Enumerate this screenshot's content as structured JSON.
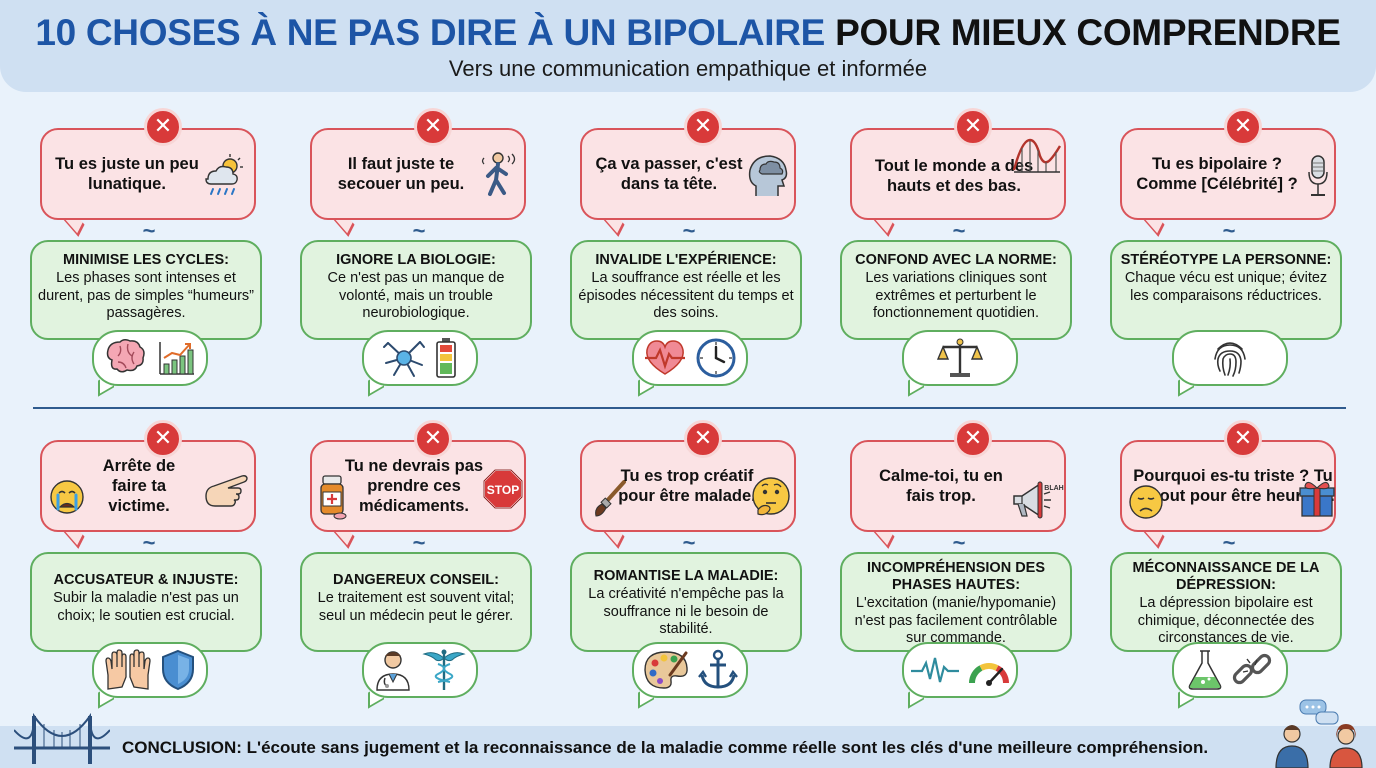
{
  "header": {
    "title_blue": "10 CHOSES À NE PAS DIRE À UN BIPOLAIRE",
    "title_black": "POUR MIEUX COMPRENDRE",
    "subtitle": "Vers une communication empathique et informée"
  },
  "cards": [
    {
      "myth": "Tu es juste un peu lunatique.",
      "head": "MINIMISE LES CYCLES:",
      "body": "Les phases sont intenses et durent, pas de simples “humeurs” passagères.",
      "icons": [
        "weather-icon",
        "brain-icon",
        "chart-up-icon"
      ]
    },
    {
      "myth": "Il faut juste te secouer un peu.",
      "head": "IGNORE LA BIOLOGIE:",
      "body": "Ce n'est pas un manque de volonté, mais un trouble neurobiologique.",
      "icons": [
        "shaking-person-icon",
        "neuron-icon",
        "battery-icon"
      ]
    },
    {
      "myth": "Ça va passer, c'est dans ta tête.",
      "head": "INVALIDE L'EXPÉRIENCE:",
      "body": "La souffrance est réelle et les épisodes nécessitent du temps et des soins.",
      "icons": [
        "head-cloud-icon",
        "heartbeat-icon",
        "clock-icon"
      ]
    },
    {
      "myth": "Tout le monde a des hauts et des bas.",
      "head": "CONFOND AVEC LA NORME:",
      "body": "Les variations cliniques sont extrêmes et perturbent le fonctionnement quotidien.",
      "icons": [
        "rollercoaster-icon",
        "scale-icon"
      ]
    },
    {
      "myth": "Tu es bipolaire ? Comme [Célébrité] ?",
      "head": "STÉRÉOTYPE LA PERSONNE:",
      "body": "Chaque vécu est unique; évitez les comparaisons réductrices.",
      "icons": [
        "microphone-icon",
        "fingerprint-icon"
      ]
    },
    {
      "myth": "Arrête de faire ta victime.",
      "head": "ACCUSATEUR & INJUSTE:",
      "body": "Subir la maladie n'est pas un choix; le soutien est crucial.",
      "icons": [
        "crying-face-icon",
        "pointing-hand-icon",
        "open-hands-icon",
        "shield-icon"
      ]
    },
    {
      "myth": "Tu ne devrais pas prendre ces médicaments.",
      "head": "DANGEREUX CONSEIL:",
      "body": "Le traitement est souvent vital; seul un médecin peut le gérer.",
      "icons": [
        "pill-bottle-icon",
        "stop-sign-icon",
        "doctor-icon",
        "caduceus-icon"
      ]
    },
    {
      "myth": "Tu es trop créatif pour être malade.",
      "head": "ROMANTISE LA MALADIE:",
      "body": "La créativité n'empêche pas la souffrance ni le besoin de stabilité.",
      "icons": [
        "paintbrush-icon",
        "thinking-face-icon",
        "palette-icon",
        "anchor-icon"
      ]
    },
    {
      "myth": "Calme-toi, tu en fais trop.",
      "head": "INCOMPRÉHENSION DES PHASES HAUTES:",
      "body": "L'excitation (manie/hypomanie) n'est pas facilement contrôlable sur commande.",
      "icons": [
        "megaphone-icon",
        "pulse-line-icon",
        "gauge-icon"
      ]
    },
    {
      "myth": "Pourquoi es-tu triste ? Tu as tout pour être heureux.",
      "head": "MÉCONNAISSANCE DE LA DÉPRESSION:",
      "body": "La dépression bipolaire est chimique, déconnectée des circonstances de vie.",
      "icons": [
        "sad-face-icon",
        "gift-icon",
        "flask-icon",
        "broken-chain-icon"
      ]
    }
  ],
  "megaphone_text": "BLAH",
  "stop_text": "STOP",
  "footer": {
    "conclusion": "CONCLUSION: L'écoute sans jugement et la reconnaissance de la maladie comme réelle sont les clés d'une meilleure compréhension."
  },
  "colors": {
    "title_blue": "#1d55a6",
    "myth_fill": "#fbe3e5",
    "myth_border": "#d9545a",
    "x_red": "#d83a3a",
    "expl_fill": "#e1f3df",
    "expl_border": "#5fae5f",
    "divider": "#2f5b8e",
    "background": "#e9f2fb"
  }
}
